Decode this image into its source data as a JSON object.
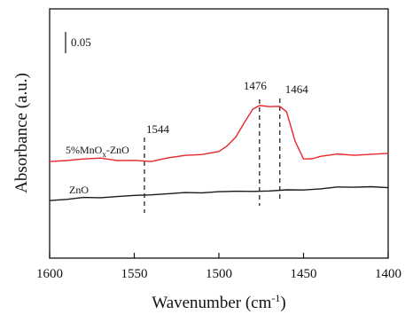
{
  "chart_data": {
    "type": "line",
    "xlabel": "Wavenumber (cm⁻¹)",
    "xlabel_main": "Wavenumber (cm",
    "xlabel_unit_sup": "-1",
    "xlabel_close": ")",
    "ylabel": "Absorbance (a.u.)",
    "xlim": [
      1600,
      1400
    ],
    "x_reversed": true,
    "xticks": [
      1600,
      1550,
      1500,
      1450,
      1400
    ],
    "xtick_labels": [
      "1600",
      "1550",
      "1500",
      "1450",
      "1400"
    ],
    "scale_bar_label": "0.05",
    "scale_bar_value": 0.05,
    "grid": false,
    "series": [
      {
        "name": "5%MnO x-ZnO",
        "label_main": "5%MnO",
        "label_sub": "x",
        "label_tail": "-ZnO",
        "color": "#e8262b",
        "x": [
          1600,
          1590,
          1580,
          1570,
          1560,
          1550,
          1540,
          1530,
          1520,
          1510,
          1500,
          1495,
          1490,
          1485,
          1480,
          1476,
          1470,
          1464,
          1460,
          1455,
          1450,
          1445,
          1440,
          1430,
          1420,
          1410,
          1400
        ],
        "y": [
          0.01,
          0.012,
          0.013,
          0.015,
          0.012,
          0.011,
          0.01,
          0.016,
          0.018,
          0.02,
          0.025,
          0.032,
          0.045,
          0.066,
          0.084,
          0.09,
          0.089,
          0.088,
          0.081,
          0.04,
          0.013,
          0.014,
          0.018,
          0.02,
          0.019,
          0.021,
          0.021
        ]
      },
      {
        "name": "ZnO",
        "label_main": "ZnO",
        "color": "#1a1a1a",
        "x": [
          1600,
          1590,
          1580,
          1570,
          1560,
          1550,
          1540,
          1530,
          1520,
          1510,
          1500,
          1490,
          1480,
          1470,
          1460,
          1450,
          1440,
          1430,
          1420,
          1410,
          1400
        ],
        "y": [
          -0.045,
          -0.044,
          -0.042,
          -0.041,
          -0.04,
          -0.039,
          -0.037,
          -0.036,
          -0.035,
          -0.034,
          -0.033,
          -0.033,
          -0.032,
          -0.032,
          -0.031,
          -0.03,
          -0.029,
          -0.027,
          -0.026,
          -0.026,
          -0.028
        ]
      }
    ],
    "annotations": [
      {
        "label": "1544",
        "x": 1544
      },
      {
        "label": "1476",
        "x": 1476
      },
      {
        "label": "1464",
        "x": 1464
      }
    ]
  }
}
